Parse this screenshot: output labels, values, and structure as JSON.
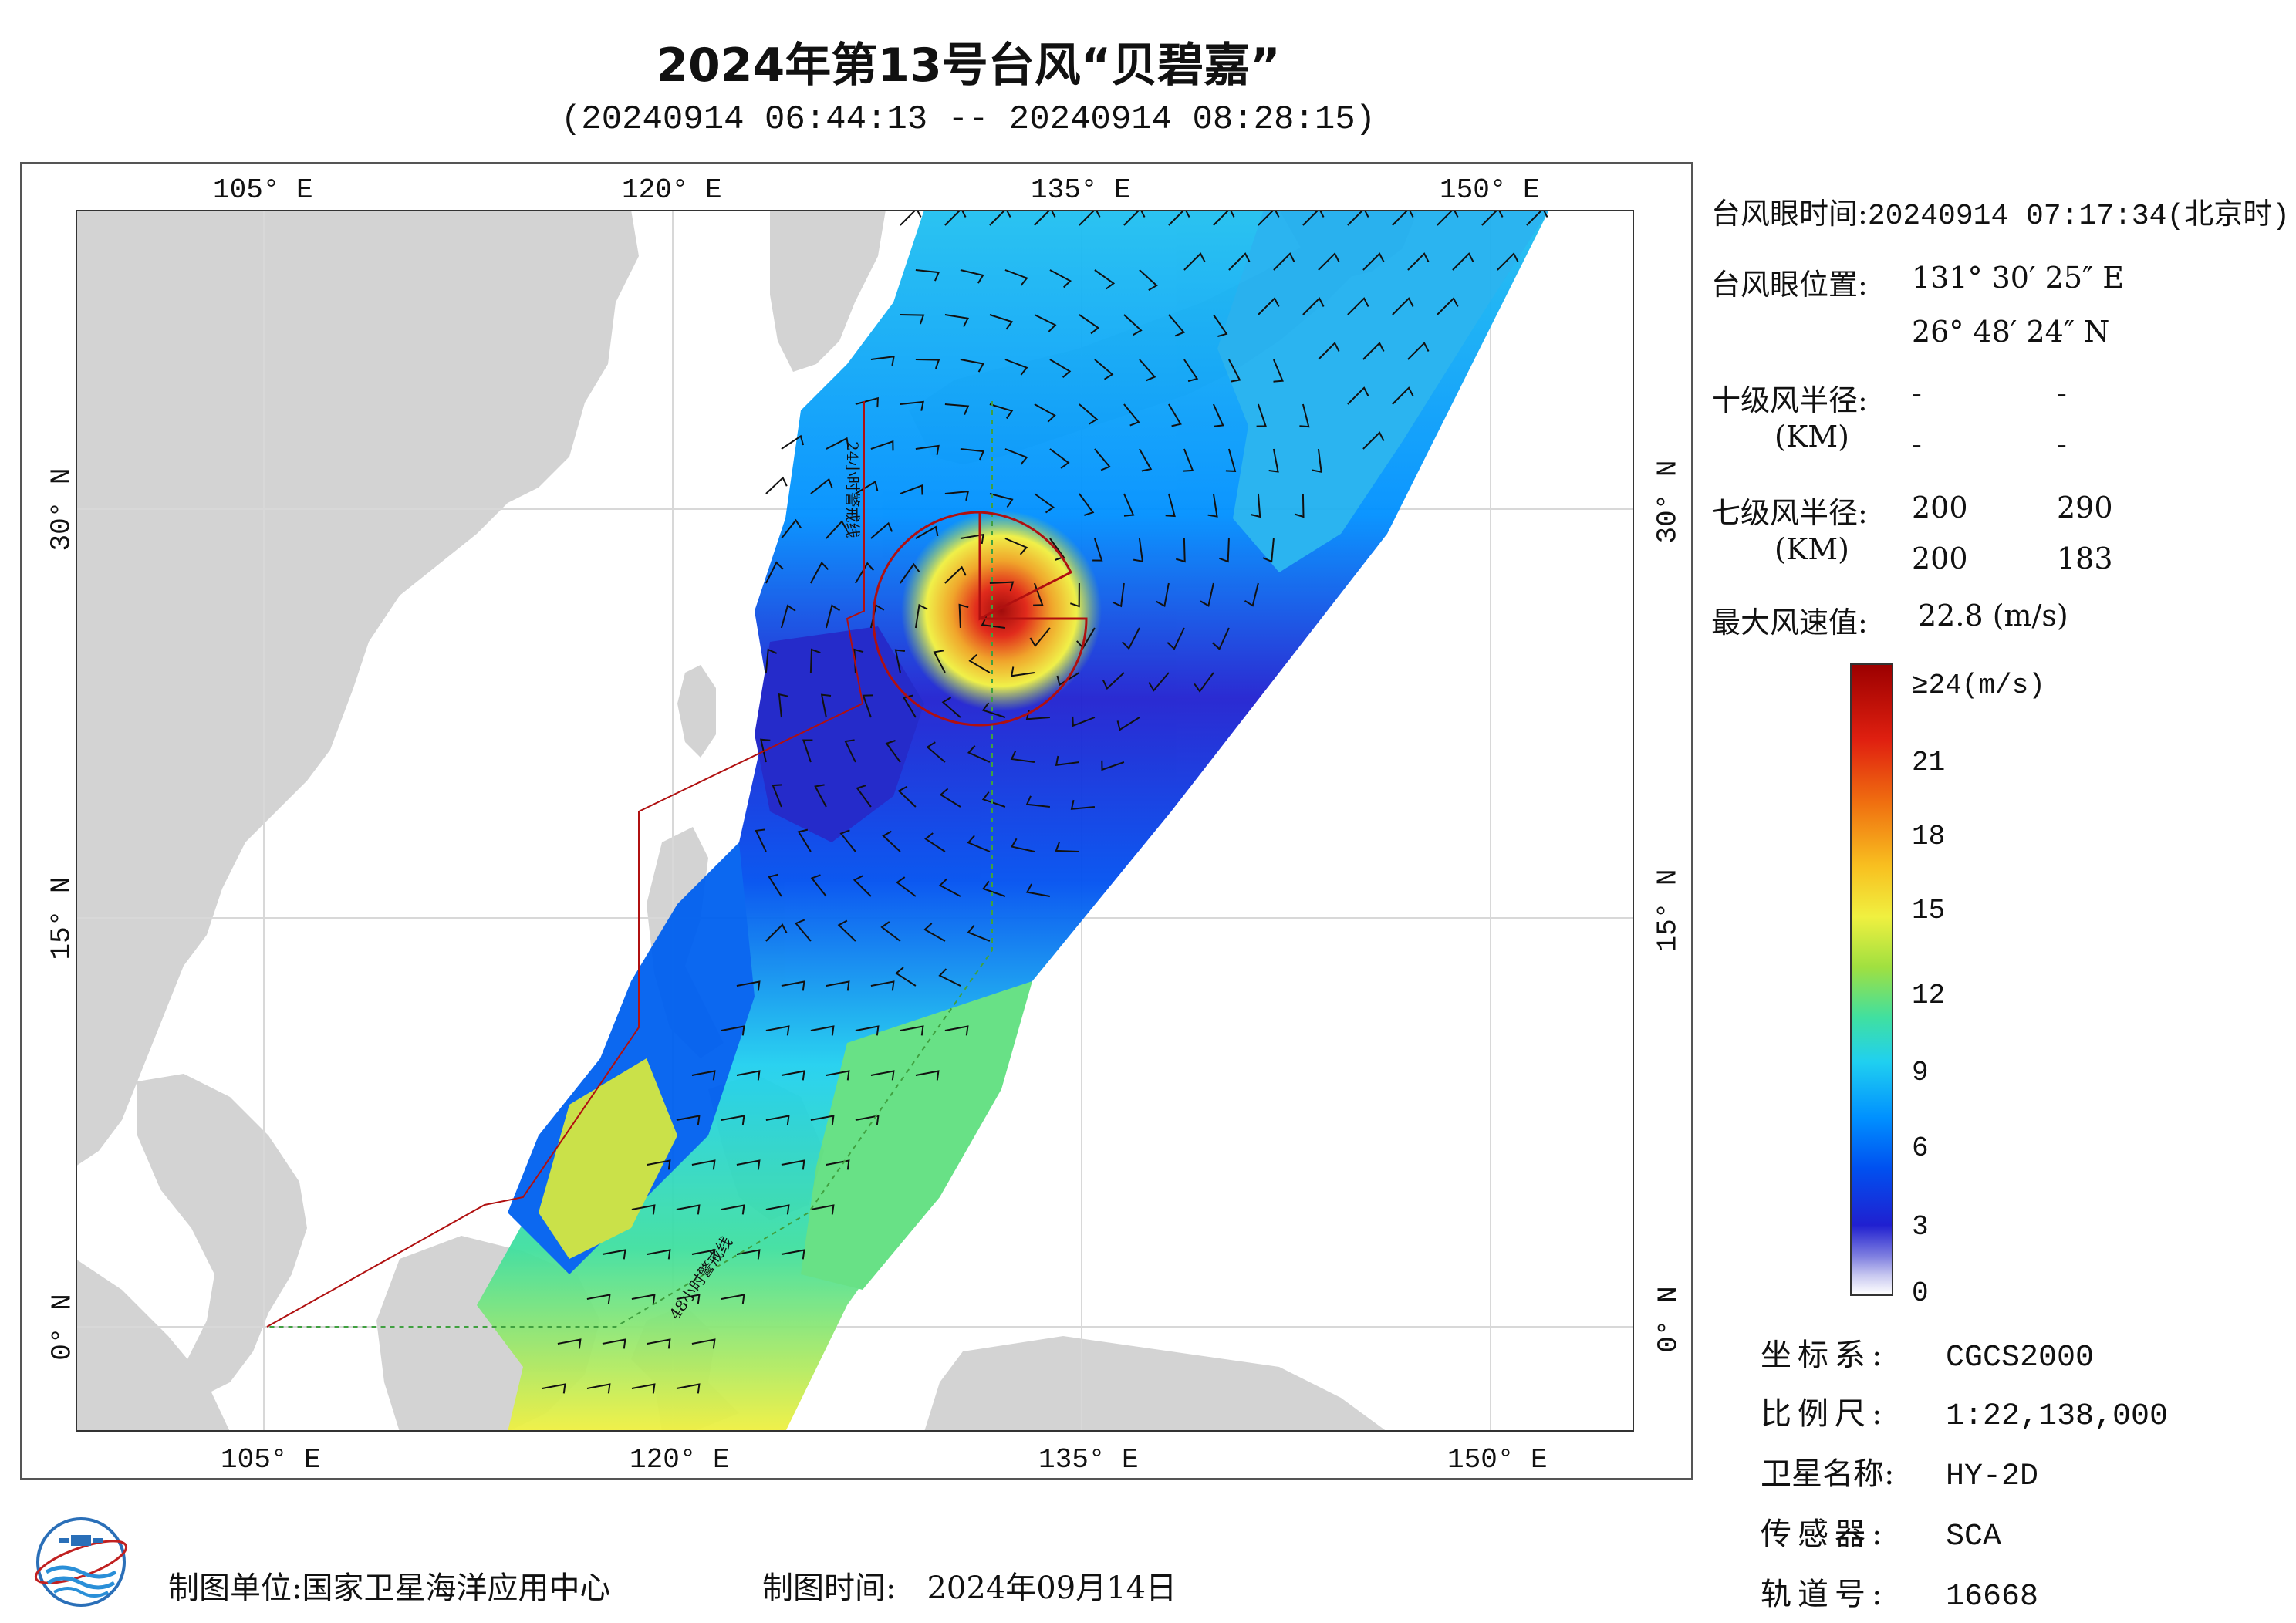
{
  "title": "2024年第13号台风“贝碧嘉”",
  "subtitle": "(20240914 06:44:13 -- 20240914 08:28:15)",
  "axes": {
    "lon_ticks": [
      "105° E",
      "120° E",
      "135° E",
      "150° E"
    ],
    "lat_ticks": [
      "30° N",
      "15° N",
      "0° N"
    ]
  },
  "map_labels": {
    "line_24h": "24小时警戒线",
    "line_48h": "48小时警戒线"
  },
  "typhoon_info": {
    "eye_time_label": "台风眼时间:",
    "eye_time_value": "20240914 07:17:34(北京时)",
    "eye_pos_label": "台风眼位置:",
    "eye_lon": "131° 30′ 25″ E",
    "eye_lat": "26° 48′ 24″ N",
    "r10_label": "十级风半径:",
    "r10_unit": "(KM)",
    "r10_values": [
      "-",
      "-",
      "-",
      "-"
    ],
    "r7_label": "七级风半径:",
    "r7_unit": "(KM)",
    "r7_values": [
      "200",
      "290",
      "200",
      "183"
    ],
    "max_wind_label": "最大风速值:",
    "max_wind_value": "22.8  (m/s)"
  },
  "colorbar": {
    "ticks": [
      "≥24(m/s)",
      "21",
      "18",
      "15",
      "12",
      "9",
      "6",
      "3",
      "0"
    ],
    "colors": [
      "#9c0000",
      "#e02010",
      "#f07010",
      "#f0f040",
      "#a0e040",
      "#20d0f0",
      "#0090ff",
      "#2020d0",
      "#ffffff"
    ]
  },
  "meta": {
    "coord_label": "坐标系:",
    "coord_value": "CGCS2000",
    "scale_label": "比例尺:",
    "scale_value": "1:22,138,000",
    "satellite_label": "卫星名称:",
    "satellite_value": "HY-2D",
    "sensor_label": "传感器:",
    "sensor_value": "SCA",
    "orbit_label": "轨道号:",
    "orbit_value": "16668"
  },
  "footer": {
    "org_label": "制图单位:",
    "org_value": "国家卫星海洋应用中心",
    "time_label": "制图时间:",
    "time_value": "2024年09月14日"
  },
  "colors": {
    "land": "#d3d3d3",
    "sea": "#ffffff",
    "warning_24h": "#b01010",
    "warning_48h": "#40a040",
    "typhoon_circle": "#b01010"
  }
}
